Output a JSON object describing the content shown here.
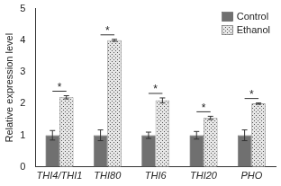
{
  "chart_data": {
    "type": "bar",
    "y_label": "Relative expression level",
    "categories": [
      "THI4/THI1",
      "THI80",
      "THI6",
      "THI20",
      "PHO"
    ],
    "series": [
      {
        "name": "Control",
        "color": "#707070",
        "values": [
          1,
          1,
          1,
          1,
          1
        ],
        "errors": [
          0.15,
          0.17,
          0.1,
          0.12,
          0.17
        ]
      },
      {
        "name": "Ethanol",
        "color": "#e6e6e6",
        "values": [
          2.2,
          4.0,
          2.1,
          1.55,
          2.0
        ],
        "errors": [
          0.05,
          0.03,
          0.08,
          0.05,
          0.02
        ]
      }
    ],
    "significance": [
      "*",
      "*",
      "*",
      "*",
      "*"
    ],
    "ylim": [
      0,
      5
    ],
    "yticks": [
      0,
      1,
      2,
      3,
      4,
      5
    ],
    "grid": false,
    "legend": "upper right"
  }
}
